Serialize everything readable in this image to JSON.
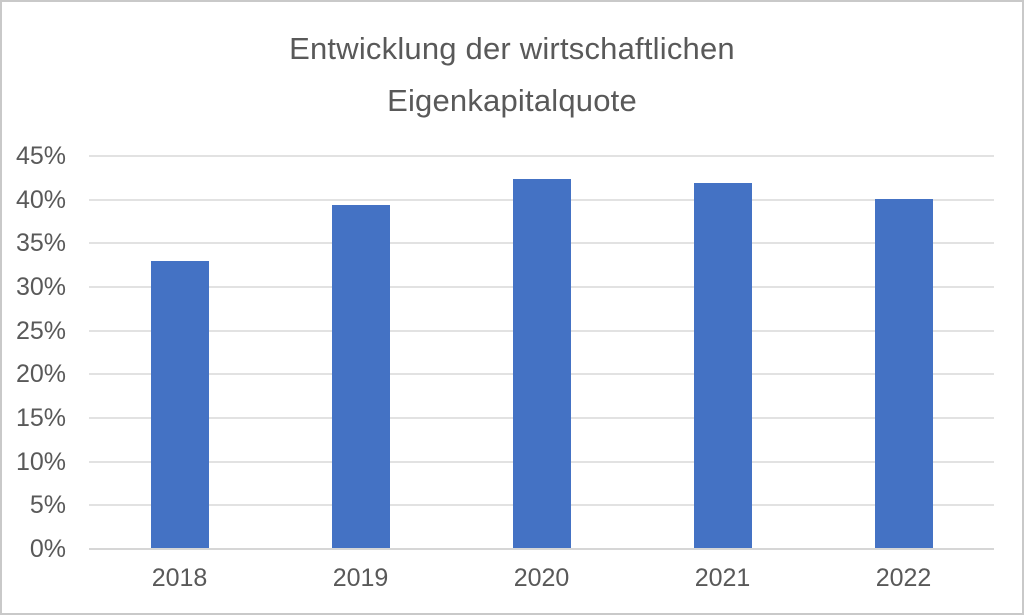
{
  "window": {
    "background_color": "#ffffff",
    "border_color": "#c9c9c9"
  },
  "chart_data": {
    "type": "bar",
    "title": "Entwicklung der wirtschaftlichen Eigenkapitalquote",
    "title_lines": [
      "Entwicklung der wirtschaftlichen",
      "Eigenkapitalquote"
    ],
    "categories": [
      "2018",
      "2019",
      "2020",
      "2021",
      "2022"
    ],
    "values": [
      33.0,
      39.4,
      42.4,
      41.9,
      40.1
    ],
    "value_unit": "%",
    "xlabel": "",
    "ylabel": "",
    "ylim": [
      0,
      45
    ],
    "y_tick_step": 5,
    "y_tick_labels": [
      "45%",
      "40%",
      "35%",
      "30%",
      "25%",
      "20%",
      "15%",
      "10%",
      "5%",
      "0%"
    ],
    "grid": true,
    "legend": "none",
    "bar_color": "#4472C4",
    "gridline_color": "#e2e2e2",
    "axis_line_color": "#d6d6d6",
    "text_color": "#595959"
  }
}
